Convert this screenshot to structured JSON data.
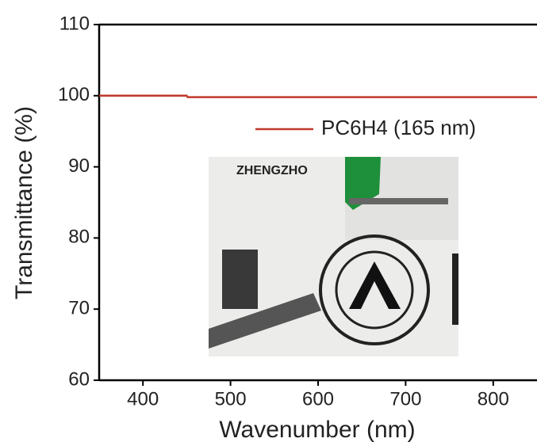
{
  "chart_data": {
    "type": "line",
    "x_label": "Wavenumber (nm)",
    "y_label": "Transmittance (%)",
    "x": [
      350,
      450,
      451,
      850
    ],
    "series": [
      {
        "name": "PC6H4 (165 nm)",
        "color": "#c0392b",
        "values": [
          100,
          100,
          99.8,
          99.8
        ]
      }
    ],
    "xlim": [
      350,
      850
    ],
    "xticks": [
      400,
      500,
      600,
      700,
      800
    ],
    "ylim": [
      60,
      110
    ],
    "yticks": [
      60,
      70,
      80,
      90,
      100,
      110
    ],
    "inset_text": "ZHENGZHO"
  }
}
